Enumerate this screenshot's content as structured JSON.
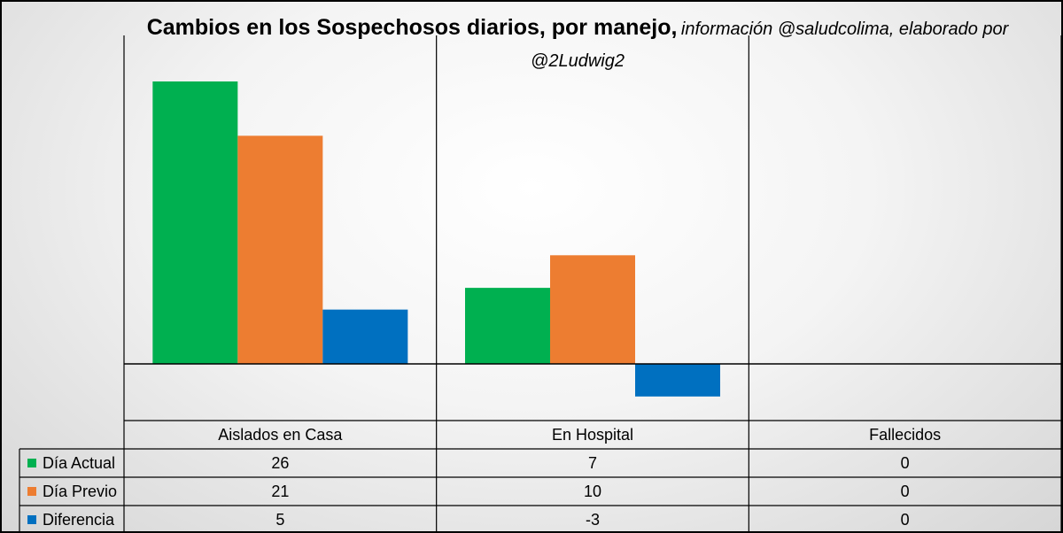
{
  "chart_data": {
    "type": "bar",
    "title": "Cambios en los Sospechosos diarios, por manejo,",
    "subtitle": "información @saludcolima, elaborado por @2Ludwig2",
    "categories": [
      "Aislados en Casa",
      "En Hospital",
      "Fallecidos"
    ],
    "series": [
      {
        "name": "Día Actual",
        "color": "#00b050",
        "values": [
          26,
          7,
          0
        ]
      },
      {
        "name": "Día Previo",
        "color": "#ed7d31",
        "values": [
          21,
          10,
          0
        ]
      },
      {
        "name": "Diferencia",
        "color": "#0070c0",
        "values": [
          5,
          -3,
          0
        ]
      }
    ],
    "ylim": [
      -7,
      28
    ],
    "grid": false,
    "data_table": true
  }
}
